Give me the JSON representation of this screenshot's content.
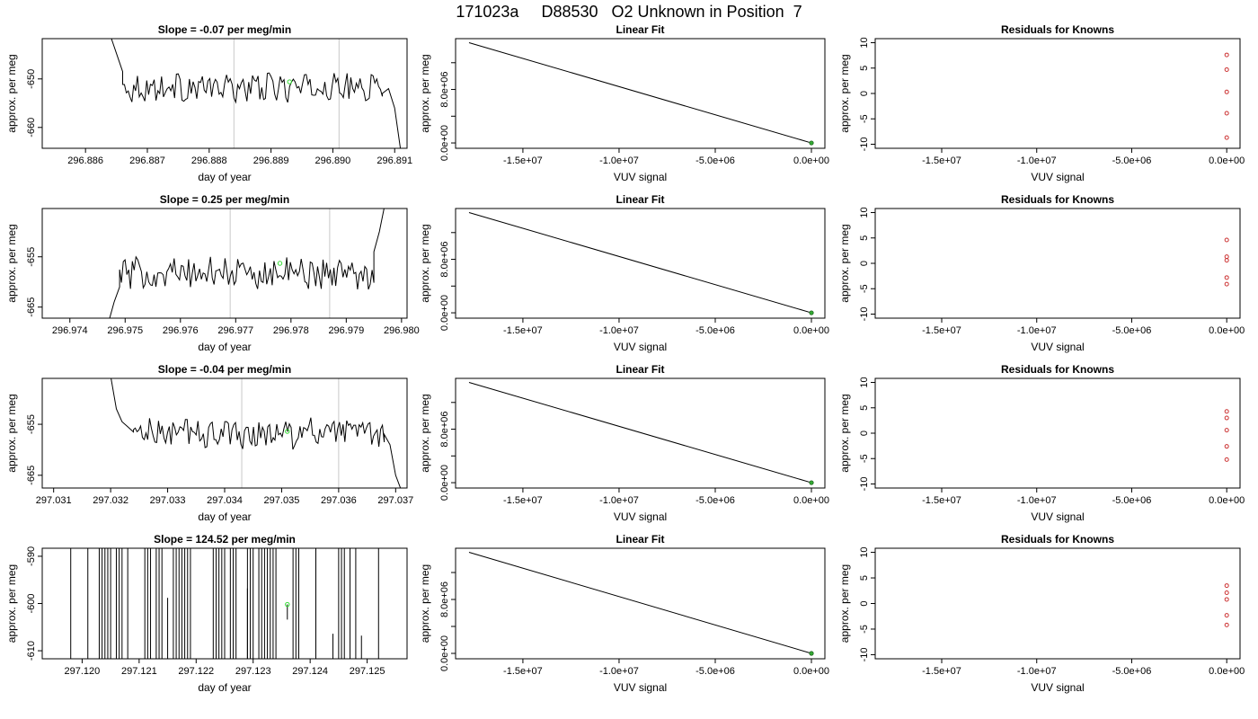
{
  "title": "171023a     D88530   O2 Unknown in Position  7",
  "chart_data": [
    {
      "type": "line",
      "row": 1,
      "title": "Slope =  -0.07  per meg/min",
      "xlabel": "day of year",
      "ylabel": "approx. per meg",
      "xlim": [
        296.8853,
        296.8912
      ],
      "ylim": [
        -664.3,
        -641.7
      ],
      "xticks": [
        296.886,
        296.887,
        296.888,
        296.889,
        296.89,
        296.891
      ],
      "xtick_labels": [
        "296.886",
        "296.887",
        "296.888",
        "296.889",
        "296.890",
        "296.891"
      ],
      "yticks": [
        -660,
        -650
      ],
      "ytick_labels": [
        "-660",
        "-650"
      ],
      "vlines": [
        296.8884,
        296.8901
      ],
      "start_x": 296.8866,
      "end_x": 296.8908,
      "stable_mean": -651.8,
      "noise": 1.6,
      "lead_x": [
        296.8864,
        296.8866
      ],
      "lead_y": [
        -641.0,
        -648.5
      ],
      "tail_x": [
        296.8908,
        296.8909,
        296.891,
        296.8911
      ],
      "tail_y": [
        -653.0,
        -652.0,
        -656.0,
        -665.0
      ],
      "marker": {
        "x": 296.8893,
        "y": -650.6
      },
      "color_line": "#000000",
      "color_vlines": "#c8c8c8",
      "color_marker": "#33dd33"
    },
    {
      "type": "line",
      "row": 2,
      "title": "Slope =  0.25  per meg/min",
      "xlabel": "day of year",
      "ylabel": "approx. per meg",
      "xlim": [
        296.9735,
        296.9801
      ],
      "ylim": [
        -667.2,
        -645.4
      ],
      "xticks": [
        296.974,
        296.975,
        296.976,
        296.977,
        296.978,
        296.979,
        296.98
      ],
      "xtick_labels": [
        "296.974",
        "296.975",
        "296.976",
        "296.977",
        "296.978",
        "296.979",
        "296.980"
      ],
      "yticks": [
        -665,
        -655
      ],
      "ytick_labels": [
        "-665",
        "-655"
      ],
      "vlines": [
        296.9769,
        296.9787
      ],
      "start_x": 296.9749,
      "end_x": 296.9795,
      "stable_mean": -658.3,
      "noise": 1.7,
      "lead_x": [
        296.9747,
        296.9748,
        296.9749
      ],
      "lead_y": [
        -668.0,
        -664.0,
        -661.0
      ],
      "tail_x": [
        296.9795,
        296.9796,
        296.9797
      ],
      "tail_y": [
        -654.0,
        -650.0,
        -644.5
      ],
      "marker": {
        "x": 296.9778,
        "y": -656.3
      },
      "color_line": "#000000",
      "color_vlines": "#c8c8c8",
      "color_marker": "#33dd33"
    },
    {
      "type": "line",
      "row": 3,
      "title": "Slope =  -0.04  per meg/min",
      "xlabel": "day of year",
      "ylabel": "approx. per meg",
      "xlim": [
        297.0308,
        297.0372
      ],
      "ylim": [
        -667.5,
        -646.0
      ],
      "xticks": [
        297.031,
        297.032,
        297.033,
        297.034,
        297.035,
        297.036,
        297.037
      ],
      "xtick_labels": [
        "297.031",
        "297.032",
        "297.033",
        "297.034",
        "297.035",
        "297.036",
        "297.037"
      ],
      "yticks": [
        -665,
        -655
      ],
      "ytick_labels": [
        "-665",
        "-655"
      ],
      "vlines": [
        297.0343,
        297.036
      ],
      "start_x": 297.0324,
      "end_x": 297.0368,
      "stable_mean": -656.8,
      "noise": 1.6,
      "lead_x": [
        297.032,
        297.0321,
        297.0322,
        297.0323,
        297.0324
      ],
      "lead_y": [
        -645.5,
        -652.0,
        -654.5,
        -655.5,
        -656.5
      ],
      "tail_x": [
        297.0368,
        297.0369,
        297.037,
        297.0371
      ],
      "tail_y": [
        -657.0,
        -659.0,
        -665.0,
        -668.0
      ],
      "marker": {
        "x": 297.0351,
        "y": -656.4
      },
      "color_line": "#000000",
      "color_vlines": "#c8c8c8",
      "color_marker": "#33dd33"
    },
    {
      "type": "spikes",
      "row": 4,
      "title": "Slope =  124.52  per meg/min",
      "xlabel": "day of year",
      "ylabel": "approx. per meg",
      "xlim": [
        297.1193,
        297.1257
      ],
      "ylim": [
        -611.7,
        -588.3
      ],
      "xticks": [
        297.12,
        297.121,
        297.122,
        297.123,
        297.124,
        297.125
      ],
      "xtick_labels": [
        "297.120",
        "297.121",
        "297.122",
        "297.123",
        "297.124",
        "297.125"
      ],
      "yticks": [
        -610,
        -600,
        -590
      ],
      "ytick_labels": [
        "-610",
        "-600",
        "-590"
      ],
      "spikes": [
        297.1198,
        297.1201,
        297.1203,
        297.12035,
        297.1204,
        297.12045,
        297.1205,
        297.1206,
        297.12065,
        297.1207,
        297.1208,
        297.1211,
        297.12115,
        297.1212,
        297.1213,
        297.12135,
        297.1214,
        297.1216,
        297.12165,
        297.1217,
        297.12175,
        297.1218,
        297.12185,
        297.1219,
        297.1223,
        297.12235,
        297.1224,
        297.12245,
        297.1225,
        297.1226,
        297.12265,
        297.1227,
        297.1229,
        297.12295,
        297.123,
        297.1231,
        297.12315,
        297.1232,
        297.12325,
        297.1233,
        297.12335,
        297.1234,
        297.1237,
        297.12375,
        297.1238,
        297.1241,
        297.1245,
        297.12455,
        297.1246,
        297.1247,
        297.1248,
        297.1252
      ],
      "partials": [
        {
          "x": 297.1215,
          "y1": -611.7,
          "y2": -598.8
        },
        {
          "x": 297.1229,
          "y1": -611.7,
          "y2": -596.8
        },
        {
          "x": 297.1236,
          "y1": -600.2,
          "y2": -603.4
        },
        {
          "x": 297.1244,
          "y1": -611.7,
          "y2": -606.4
        },
        {
          "x": 297.1249,
          "y1": -611.7,
          "y2": -606.8
        }
      ],
      "marker": {
        "x": 297.1236,
        "y": -600.2
      },
      "color_line": "#000000",
      "color_marker": "#33dd33"
    },
    {
      "type": "line",
      "row": 1,
      "title": "Linear Fit",
      "xlabel": "VUV signal",
      "ylabel": "approx. per meg",
      "xlim": [
        -18500000,
        700000
      ],
      "ylim": [
        -800000,
        15600000
      ],
      "xticks": [
        -15000000,
        -10000000,
        -5000000,
        0
      ],
      "xtick_labels": [
        "-1.5e+07",
        "-1.0e+07",
        "-5.0e+06",
        "0.0e+00"
      ],
      "yticks": [
        0,
        4000000,
        8000000,
        12000000
      ],
      "ytick_labels": [
        "0.0e+00",
        "",
        "8.0e+06",
        ""
      ],
      "x": [
        -17800000,
        0
      ],
      "y": [
        15000000,
        0
      ],
      "points": [
        {
          "x": 0,
          "y": 0
        }
      ],
      "color_line": "#000000",
      "color_point": "#33aa33"
    },
    {
      "type": "line",
      "row": 2,
      "title": "Linear Fit",
      "xlabel": "VUV signal",
      "ylabel": "approx. per meg",
      "xlim": [
        -18500000,
        700000
      ],
      "ylim": [
        -800000,
        15600000
      ],
      "xticks": [
        -15000000,
        -10000000,
        -5000000,
        0
      ],
      "xtick_labels": [
        "-1.5e+07",
        "-1.0e+07",
        "-5.0e+06",
        "0.0e+00"
      ],
      "yticks": [
        0,
        4000000,
        8000000,
        12000000
      ],
      "ytick_labels": [
        "0.0e+00",
        "",
        "8.0e+06",
        ""
      ],
      "x": [
        -17800000,
        0
      ],
      "y": [
        15000000,
        0
      ],
      "points": [
        {
          "x": 0,
          "y": 0
        }
      ],
      "color_line": "#000000",
      "color_point": "#33aa33"
    },
    {
      "type": "line",
      "row": 3,
      "title": "Linear Fit",
      "xlabel": "VUV signal",
      "ylabel": "approx. per meg",
      "xlim": [
        -18500000,
        700000
      ],
      "ylim": [
        -800000,
        15600000
      ],
      "xticks": [
        -15000000,
        -10000000,
        -5000000,
        0
      ],
      "xtick_labels": [
        "-1.5e+07",
        "-1.0e+07",
        "-5.0e+06",
        "0.0e+00"
      ],
      "yticks": [
        0,
        4000000,
        8000000,
        12000000
      ],
      "ytick_labels": [
        "0.0e+00",
        "",
        "8.0e+06",
        ""
      ],
      "x": [
        -17800000,
        0
      ],
      "y": [
        15000000,
        0
      ],
      "points": [
        {
          "x": 0,
          "y": 0
        }
      ],
      "color_line": "#000000",
      "color_point": "#33aa33"
    },
    {
      "type": "line",
      "row": 4,
      "title": "Linear Fit",
      "xlabel": "VUV signal",
      "ylabel": "approx. per meg",
      "xlim": [
        -18500000,
        700000
      ],
      "ylim": [
        -800000,
        15600000
      ],
      "xticks": [
        -15000000,
        -10000000,
        -5000000,
        0
      ],
      "xtick_labels": [
        "-1.5e+07",
        "-1.0e+07",
        "-5.0e+06",
        "0.0e+00"
      ],
      "yticks": [
        0,
        4000000,
        8000000,
        12000000
      ],
      "ytick_labels": [
        "0.0e+00",
        "",
        "8.0e+06",
        ""
      ],
      "x": [
        -17800000,
        0
      ],
      "y": [
        15000000,
        0
      ],
      "points": [
        {
          "x": 0,
          "y": 0
        }
      ],
      "color_line": "#000000",
      "color_point": "#33aa33"
    },
    {
      "type": "scatter",
      "row": 1,
      "title": "Residuals for Knowns",
      "xlabel": "VUV signal",
      "ylabel": "approx. per meg",
      "xlim": [
        -18500000,
        700000
      ],
      "ylim": [
        -10.8,
        10.8
      ],
      "xticks": [
        -15000000,
        -10000000,
        -5000000,
        0
      ],
      "xtick_labels": [
        "-1.5e+07",
        "-1.0e+07",
        "-5.0e+06",
        "0.0e+00"
      ],
      "yticks": [
        -10,
        -5,
        0,
        5,
        10
      ],
      "ytick_labels": [
        "-10",
        "-5",
        "0",
        "5",
        "10"
      ],
      "x": [
        0,
        0,
        0,
        0,
        0
      ],
      "y": [
        7.6,
        4.7,
        0.3,
        -3.9,
        -8.7
      ],
      "color_point": "#cc3333"
    },
    {
      "type": "scatter",
      "row": 2,
      "title": "Residuals for Knowns",
      "xlabel": "VUV signal",
      "ylabel": "approx. per meg",
      "xlim": [
        -18500000,
        700000
      ],
      "ylim": [
        -10.8,
        10.8
      ],
      "xticks": [
        -15000000,
        -10000000,
        -5000000,
        0
      ],
      "xtick_labels": [
        "-1.5e+07",
        "-1.0e+07",
        "-5.0e+06",
        "0.0e+00"
      ],
      "yticks": [
        -10,
        -5,
        0,
        5,
        10
      ],
      "ytick_labels": [
        "-10",
        "-5",
        "0",
        "5",
        "10"
      ],
      "x": [
        0,
        0,
        0,
        0,
        0
      ],
      "y": [
        4.6,
        1.3,
        0.6,
        -2.8,
        -4.1
      ],
      "color_point": "#cc3333"
    },
    {
      "type": "scatter",
      "row": 3,
      "title": "Residuals for Knowns",
      "xlabel": "VUV signal",
      "ylabel": "approx. per meg",
      "xlim": [
        -18500000,
        700000
      ],
      "ylim": [
        -10.8,
        10.8
      ],
      "xticks": [
        -15000000,
        -10000000,
        -5000000,
        0
      ],
      "xtick_labels": [
        "-1.5e+07",
        "-1.0e+07",
        "-5.0e+06",
        "0.0e+00"
      ],
      "yticks": [
        -10,
        -5,
        0,
        5,
        10
      ],
      "ytick_labels": [
        "-10",
        "-5",
        "0",
        "5",
        "10"
      ],
      "x": [
        0,
        0,
        0,
        0,
        0
      ],
      "y": [
        4.3,
        3.0,
        0.6,
        -2.6,
        -5.2
      ],
      "color_point": "#cc3333"
    },
    {
      "type": "scatter",
      "row": 4,
      "title": "Residuals for Knowns",
      "xlabel": "VUV signal",
      "ylabel": "approx. per meg",
      "xlim": [
        -18500000,
        700000
      ],
      "ylim": [
        -10.8,
        10.8
      ],
      "xticks": [
        -15000000,
        -10000000,
        -5000000,
        0
      ],
      "xtick_labels": [
        "-1.5e+07",
        "-1.0e+07",
        "-5.0e+06",
        "0.0e+00"
      ],
      "yticks": [
        -10,
        -5,
        0,
        5,
        10
      ],
      "ytick_labels": [
        "-10",
        "-5",
        "0",
        "5",
        "10"
      ],
      "x": [
        0,
        0,
        0,
        0,
        0
      ],
      "y": [
        3.5,
        2.1,
        0.8,
        -2.3,
        -4.2
      ],
      "color_point": "#cc3333"
    }
  ]
}
